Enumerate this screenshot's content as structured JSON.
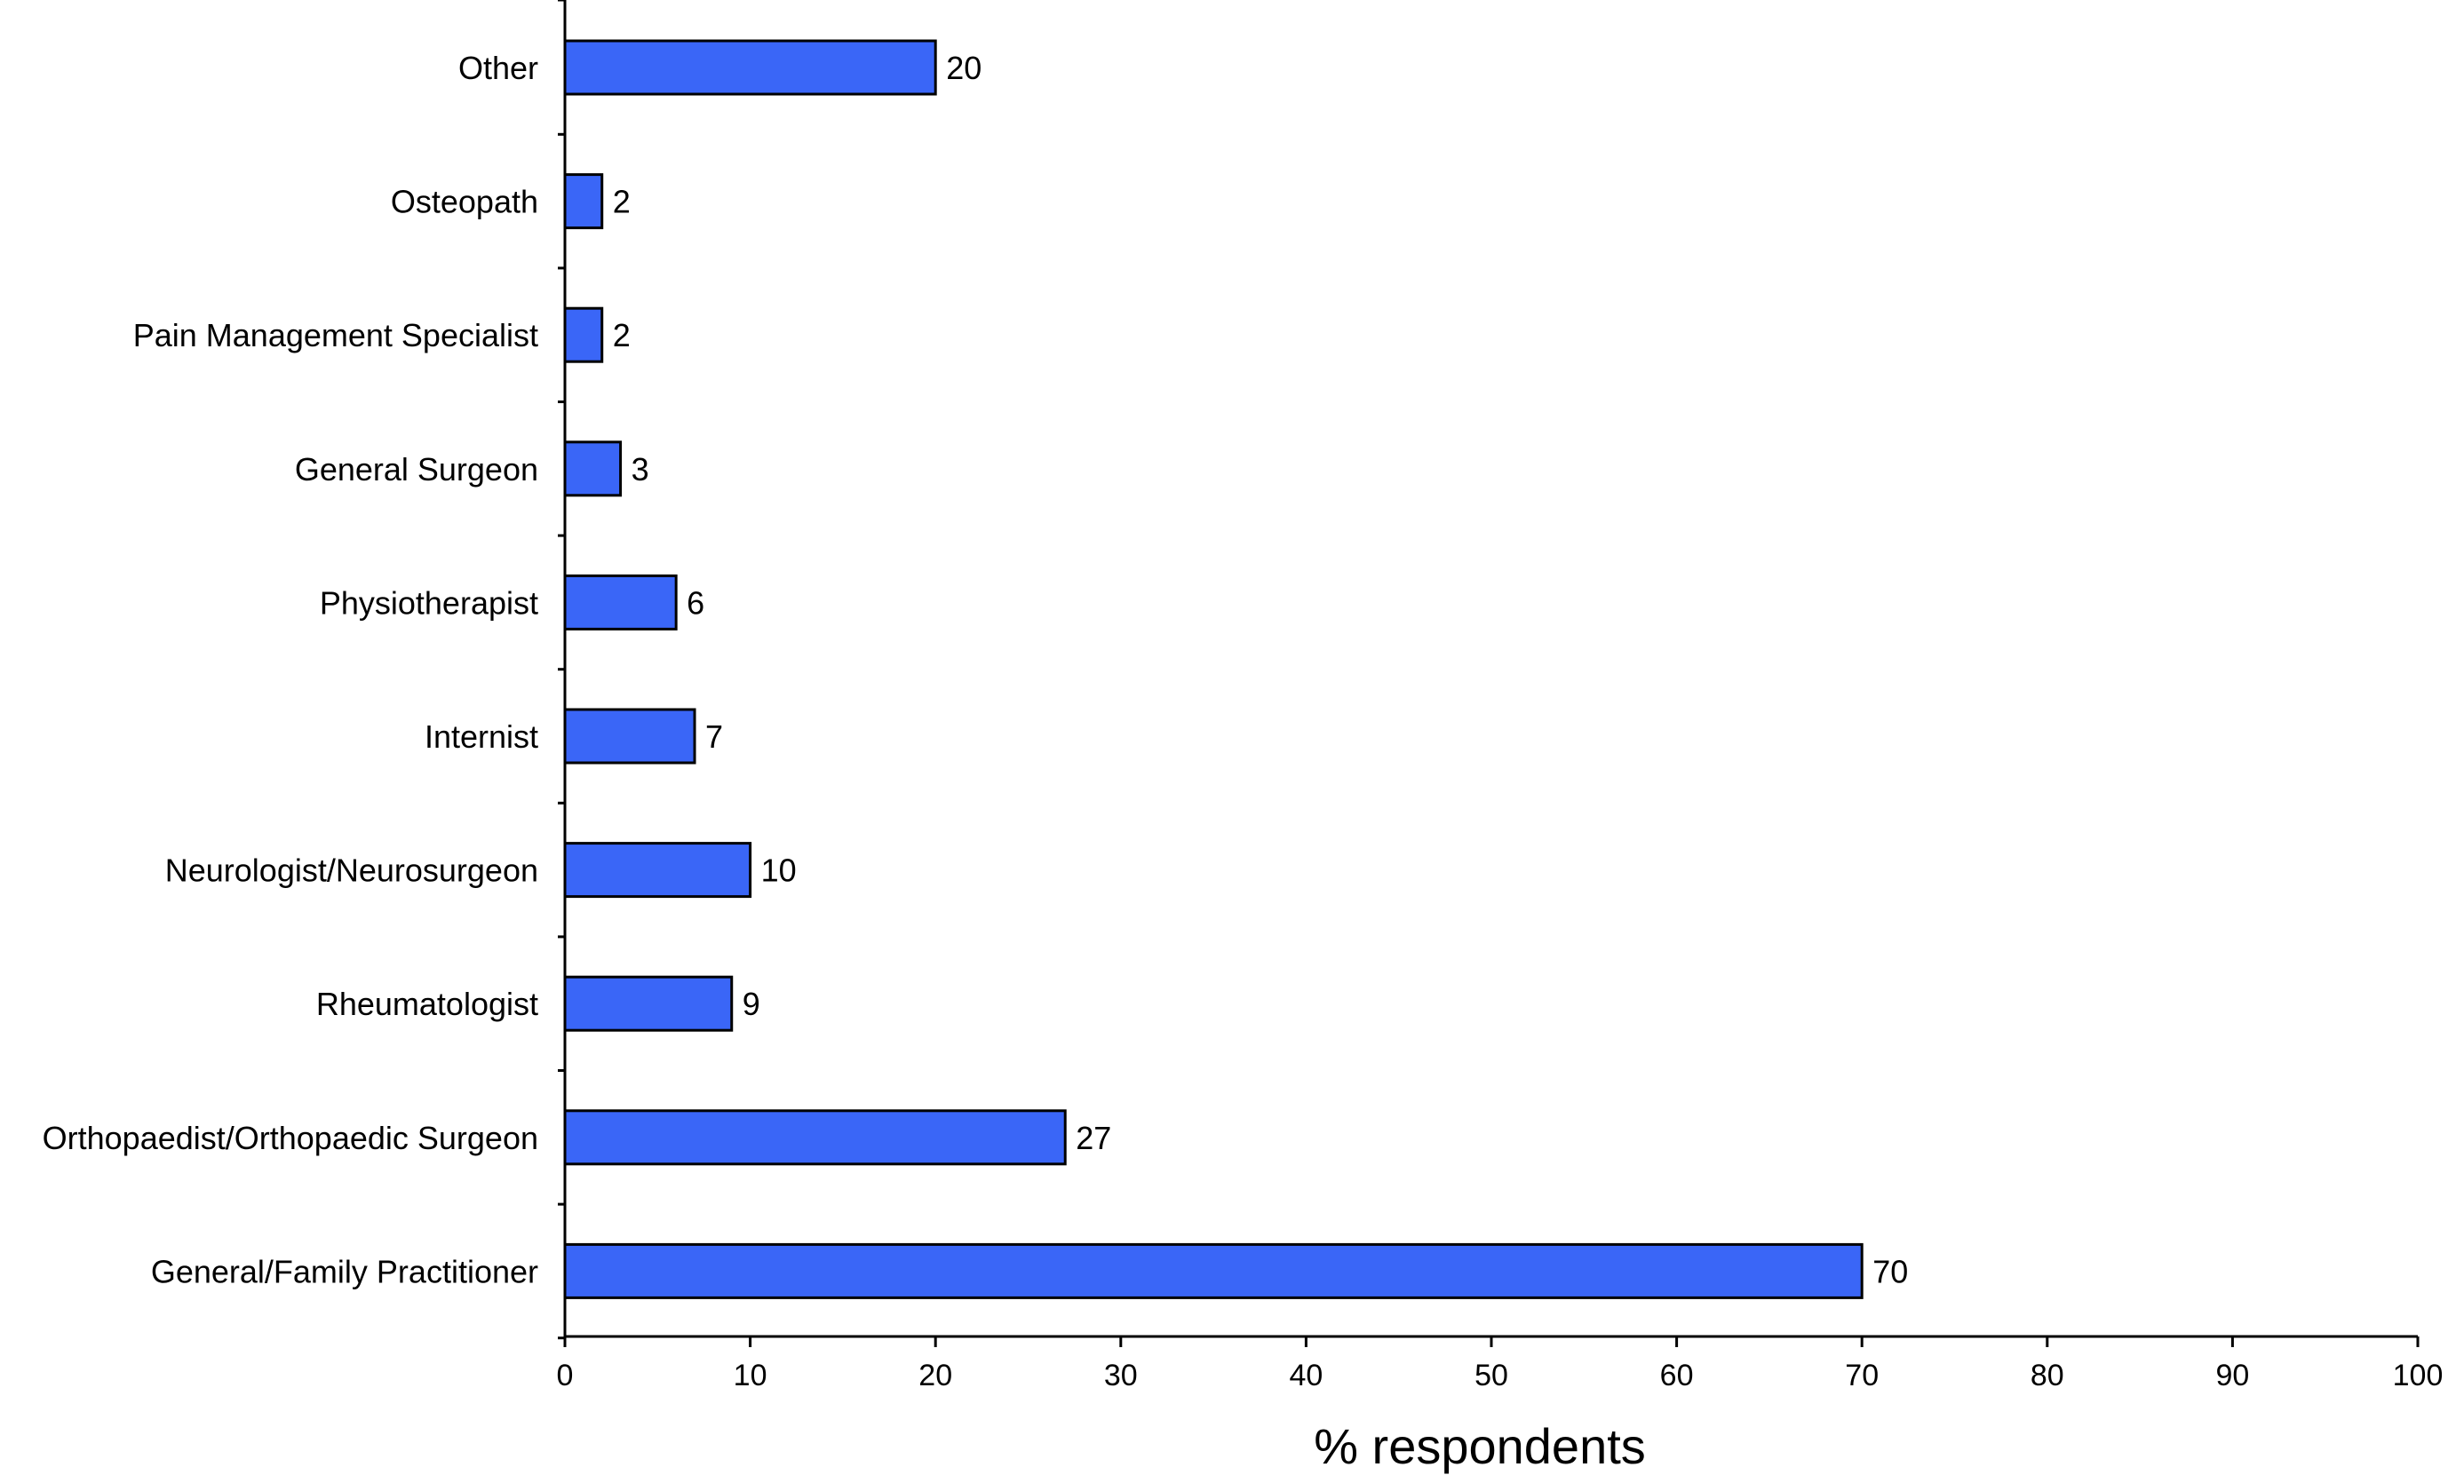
{
  "chart_data": {
    "type": "bar",
    "orientation": "horizontal",
    "title": "",
    "xlabel": "% respondents",
    "ylabel": "",
    "xlim": [
      0,
      100
    ],
    "x_ticks": [
      0,
      10,
      20,
      30,
      40,
      50,
      60,
      70,
      80,
      90,
      100
    ],
    "grid": false,
    "legend": "none",
    "bar_color": "#3a66f7",
    "bar_edge_color": "#000000",
    "categories": [
      "Other",
      "Osteopath",
      "Pain Management Specialist",
      "General Surgeon",
      "Physiotherapist",
      "Internist",
      "Neurologist/Neurosurgeon",
      "Rheumatologist",
      "Orthopaedist/Orthopaedic Surgeon",
      "General/Family Practitioner"
    ],
    "values": [
      20,
      2,
      2,
      3,
      6,
      7,
      10,
      9,
      27,
      70
    ],
    "data_labels": [
      "20",
      "2",
      "2",
      "3",
      "6",
      "7",
      "10",
      "9",
      "27",
      "70"
    ]
  }
}
